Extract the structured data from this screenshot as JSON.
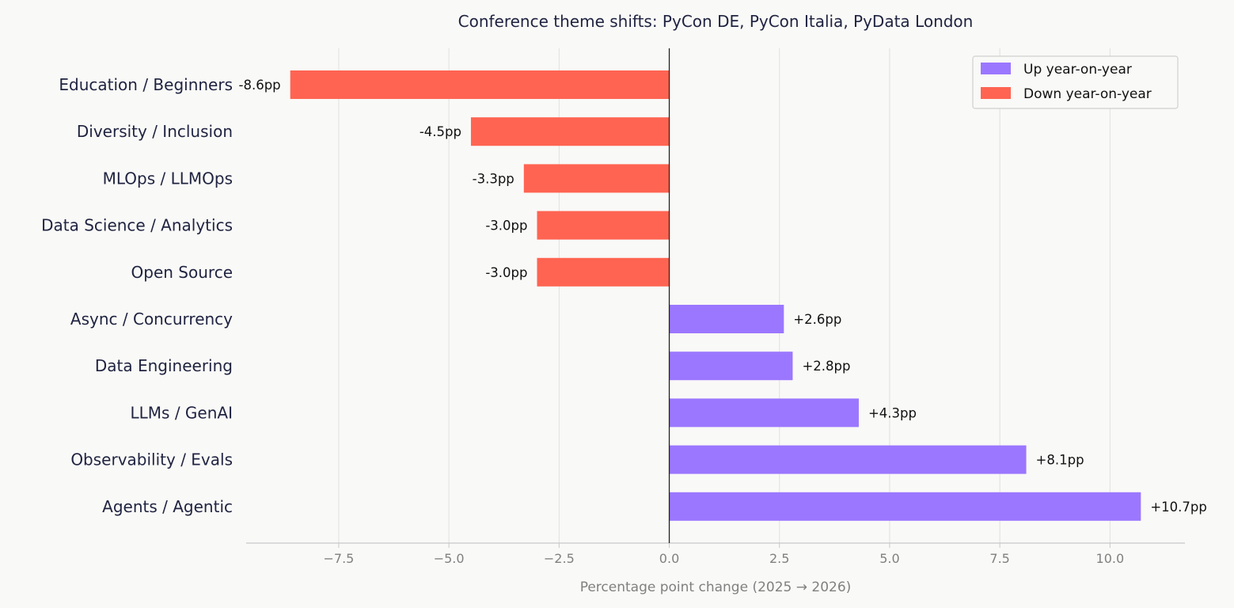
{
  "chart_data": {
    "type": "bar",
    "orientation": "horizontal",
    "title": "Conference theme shifts: PyCon DE, PyCon Italia, PyData London",
    "xlabel": "Percentage point change (2025 → 2026)",
    "ylabel": "",
    "xlim": [
      -9.6,
      11.7
    ],
    "xticks": [
      -7.5,
      -5.0,
      -2.5,
      0.0,
      2.5,
      5.0,
      7.5,
      10.0
    ],
    "xtick_labels": [
      "−7.5",
      "−5.0",
      "−2.5",
      "0.0",
      "2.5",
      "5.0",
      "7.5",
      "10.0"
    ],
    "grid": true,
    "legend_position": "top-right",
    "categories": [
      "Education / Beginners",
      "Diversity / Inclusion",
      "MLOps / LLMOps",
      "Data Science / Analytics",
      "Open Source",
      "Async / Concurrency",
      "Data Engineering",
      "LLMs / GenAI",
      "Observability / Evals",
      "Agents / Agentic"
    ],
    "values": [
      -8.6,
      -4.5,
      -3.3,
      -3.0,
      -3.0,
      2.6,
      2.8,
      4.3,
      8.1,
      10.7
    ],
    "value_labels": [
      "-8.6pp",
      "-4.5pp",
      "-3.3pp",
      "-3.0pp",
      "-3.0pp",
      "+2.6pp",
      "+2.8pp",
      "+4.3pp",
      "+8.1pp",
      "+10.7pp"
    ],
    "series": [
      {
        "name": "Up year-on-year",
        "color": "#9b77ff"
      },
      {
        "name": "Down year-on-year",
        "color": "#ff6452"
      }
    ]
  }
}
